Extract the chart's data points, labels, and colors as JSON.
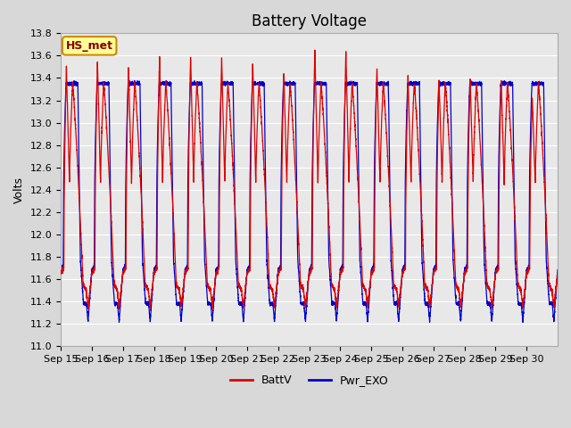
{
  "title": "Battery Voltage",
  "ylabel": "Volts",
  "ylim": [
    11.0,
    13.8
  ],
  "yticks": [
    11.0,
    11.2,
    11.4,
    11.6,
    11.8,
    12.0,
    12.2,
    12.4,
    12.6,
    12.8,
    13.0,
    13.2,
    13.4,
    13.6,
    13.8
  ],
  "x_labels": [
    "Sep 15",
    "Sep 16",
    "Sep 17",
    "Sep 18",
    "Sep 19",
    "Sep 20",
    "Sep 21",
    "Sep 22",
    "Sep 23",
    "Sep 24",
    "Sep 25",
    "Sep 26",
    "Sep 27",
    "Sep 28",
    "Sep 29",
    "Sep 30"
  ],
  "background_color": "#d8d8d8",
  "plot_bg_color": "#e8e8e8",
  "grid_color": "#ffffff",
  "line_color_batt": "#dd0000",
  "line_color_pwr": "#0000cc",
  "legend_label_batt": "BattV",
  "legend_label_pwr": "Pwr_EXO",
  "annotation_text": "HS_met",
  "annotation_bg": "#ffff99",
  "annotation_border": "#cc8800",
  "title_fontsize": 12,
  "label_fontsize": 9,
  "tick_fontsize": 8
}
